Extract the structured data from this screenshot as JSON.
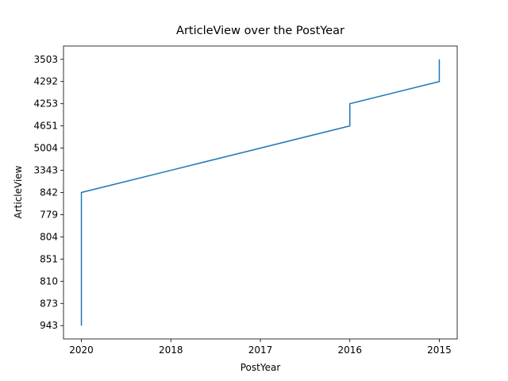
{
  "chart_data": {
    "type": "line",
    "title": "ArticleView over the PostYear",
    "xlabel": "PostYear",
    "ylabel": "ArticleView",
    "x": [
      "2020",
      "2020",
      "2020",
      "2020",
      "2020",
      "2020",
      "2020",
      "2018",
      "2017",
      "2016",
      "2016",
      "2015",
      "2015"
    ],
    "values": [
      943,
      873,
      810,
      851,
      804,
      779,
      842,
      3343,
      5004,
      4651,
      4253,
      4292,
      3503
    ],
    "color": "#1f77b4"
  }
}
